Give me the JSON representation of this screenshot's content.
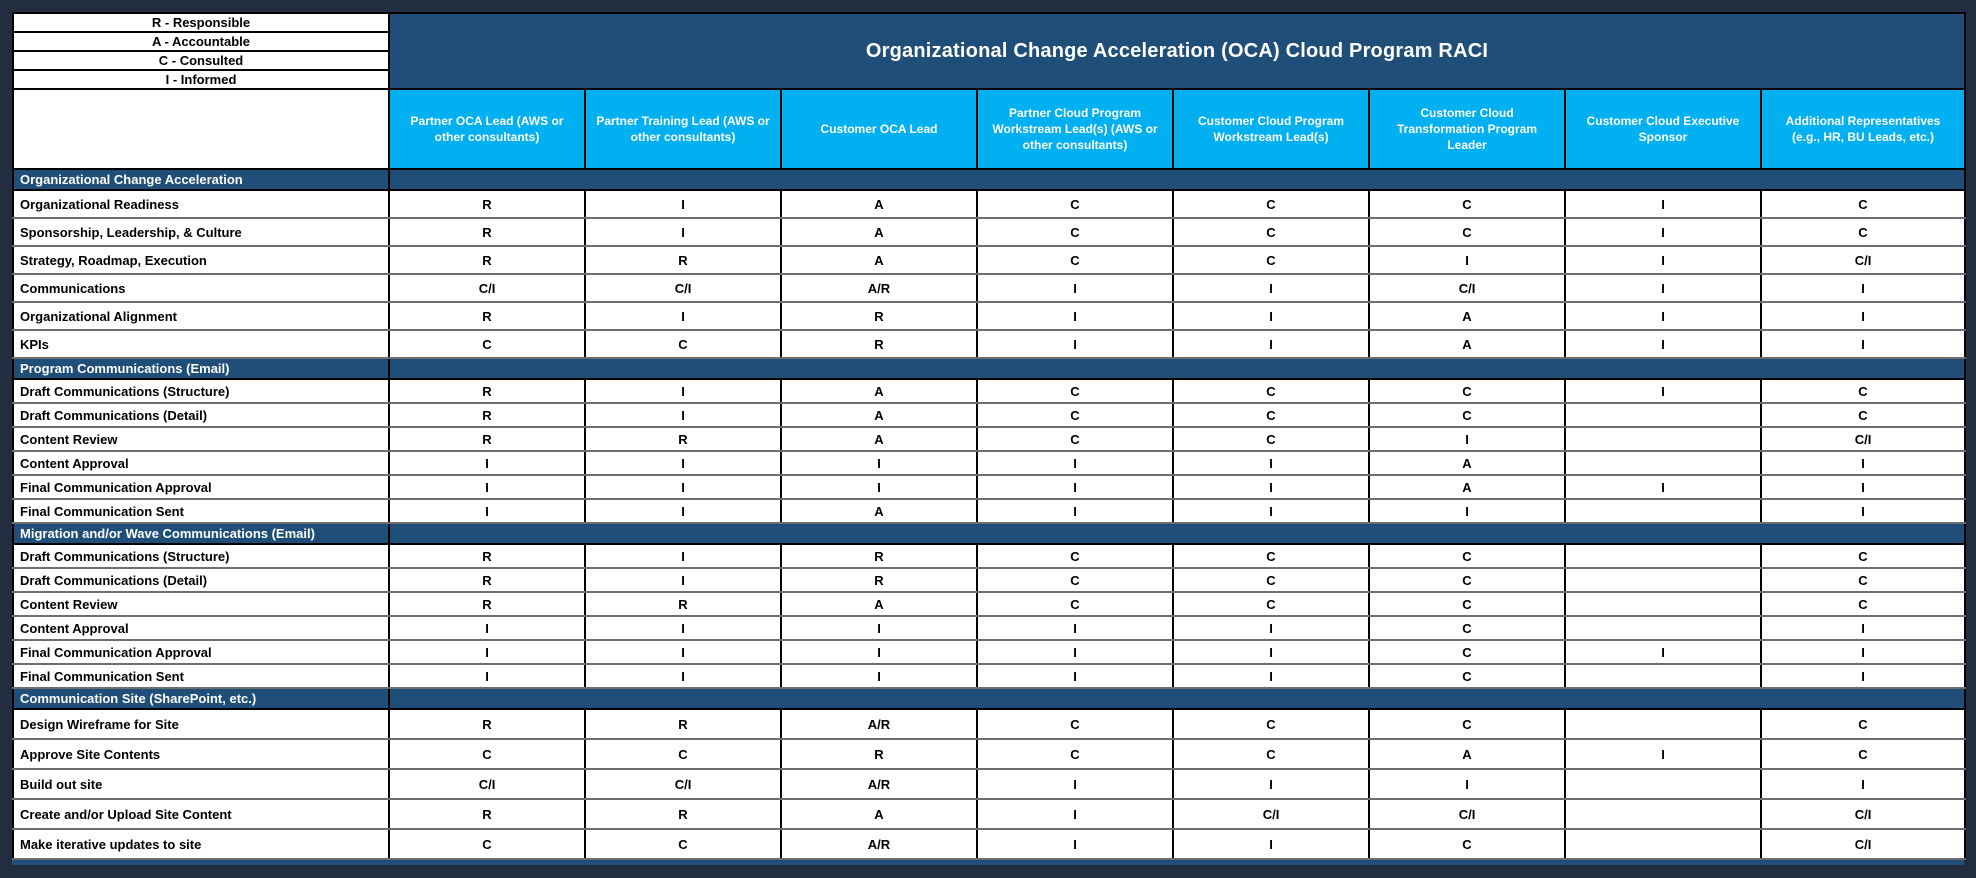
{
  "title": "Organizational Change Acceleration (OCA) Cloud Program RACI",
  "legend": [
    "R - Responsible",
    "A - Accountable",
    "C - Consulted",
    "I - Informed"
  ],
  "columns": [
    "Partner OCA Lead (AWS or other consultants)",
    "Partner Training Lead (AWS or other consultants)",
    "Customer OCA  Lead",
    "Partner Cloud Program Workstream Lead(s) (AWS or other consultants)",
    "Customer Cloud Program Workstream Lead(s)",
    "Customer Cloud Transformation Program Leader",
    "Customer Cloud Executive Sponsor",
    "Additional Representatives (e.g., HR, BU Leads, etc.)"
  ],
  "sections": [
    {
      "name": "Organizational Change Acceleration",
      "rows": [
        {
          "activity": "Organizational Readiness",
          "values": [
            "R",
            "I",
            "A",
            "C",
            "C",
            "C",
            "I",
            "C"
          ]
        },
        {
          "activity": "Sponsorship, Leadership, & Culture",
          "values": [
            "R",
            "I",
            "A",
            "C",
            "C",
            "C",
            "I",
            "C"
          ]
        },
        {
          "activity": "Strategy, Roadmap, Execution",
          "values": [
            "R",
            "R",
            "A",
            "C",
            "C",
            "I",
            "I",
            "C/I"
          ]
        },
        {
          "activity": "Communications",
          "values": [
            "C/I",
            "C/I",
            "A/R",
            "I",
            "I",
            "C/I",
            "I",
            "I"
          ]
        },
        {
          "activity": "Organizational Alignment",
          "values": [
            "R",
            "I",
            "R",
            "I",
            "I",
            "A",
            "I",
            "I"
          ]
        },
        {
          "activity": "KPIs",
          "values": [
            "C",
            "C",
            "R",
            "I",
            "I",
            "A",
            "I",
            "I"
          ]
        }
      ]
    },
    {
      "name": "Program Communications (Email)",
      "rows": [
        {
          "activity": "Draft Communications (Structure)",
          "values": [
            "R",
            "I",
            "A",
            "C",
            "C",
            "C",
            "I",
            "C"
          ]
        },
        {
          "activity": "Draft Communications (Detail)",
          "values": [
            "R",
            "I",
            "A",
            "C",
            "C",
            "C",
            "",
            "C"
          ]
        },
        {
          "activity": "Content Review",
          "values": [
            "R",
            "R",
            "A",
            "C",
            "C",
            "I",
            "",
            "C/I"
          ]
        },
        {
          "activity": "Content Approval",
          "values": [
            "I",
            "I",
            "I",
            "I",
            "I",
            "A",
            "",
            "I"
          ]
        },
        {
          "activity": "Final Communication Approval",
          "values": [
            "I",
            "I",
            "I",
            "I",
            "I",
            "A",
            "I",
            "I"
          ]
        },
        {
          "activity": "Final Communication Sent",
          "values": [
            "I",
            "I",
            "A",
            "I",
            "I",
            "I",
            "",
            "I"
          ]
        }
      ]
    },
    {
      "name": "Migration and/or Wave Communications (Email)",
      "rows": [
        {
          "activity": "Draft Communications (Structure)",
          "values": [
            "R",
            "I",
            "R",
            "C",
            "C",
            "C",
            "",
            "C"
          ]
        },
        {
          "activity": "Draft Communications (Detail)",
          "values": [
            "R",
            "I",
            "R",
            "C",
            "C",
            "C",
            "",
            "C"
          ]
        },
        {
          "activity": "Content Review",
          "values": [
            "R",
            "R",
            "A",
            "C",
            "C",
            "C",
            "",
            "C"
          ]
        },
        {
          "activity": "Content Approval",
          "values": [
            "I",
            "I",
            "I",
            "I",
            "I",
            "C",
            "",
            "I"
          ]
        },
        {
          "activity": "Final Communication Approval",
          "values": [
            "I",
            "I",
            "I",
            "I",
            "I",
            "C",
            "I",
            "I"
          ]
        },
        {
          "activity": "Final Communication Sent",
          "values": [
            "I",
            "I",
            "I",
            "I",
            "I",
            "C",
            "",
            "I"
          ]
        }
      ]
    },
    {
      "name": "Communication Site (SharePoint, etc.)",
      "rows": [
        {
          "activity": "Design Wireframe for Site",
          "values": [
            "R",
            "R",
            "A/R",
            "C",
            "C",
            "C",
            "",
            "C"
          ]
        },
        {
          "activity": "Approve Site Contents",
          "values": [
            "C",
            "C",
            "R",
            "C",
            "C",
            "A",
            "I",
            "C"
          ]
        },
        {
          "activity": "Build out site",
          "values": [
            "C/I",
            "C/I",
            "A/R",
            "I",
            "I",
            "I",
            "",
            "I"
          ]
        },
        {
          "activity": "Create and/or Upload Site Content",
          "values": [
            "R",
            "R",
            "A",
            "I",
            "C/I",
            "C/I",
            "",
            "C/I"
          ]
        },
        {
          "activity": "Make iterative updates to site",
          "values": [
            "C",
            "C",
            "A/R",
            "I",
            "I",
            "C",
            "",
            "C/I"
          ]
        }
      ]
    }
  ],
  "colors": {
    "title_bg": "#1F4E79",
    "section_bg": "#1F4E79",
    "header_bg": "#00B0F0",
    "page_bg": "#232D40",
    "cell_bg": "#FFFFFF",
    "header_text": "#FFFFFF",
    "cell_text": "#000000"
  }
}
